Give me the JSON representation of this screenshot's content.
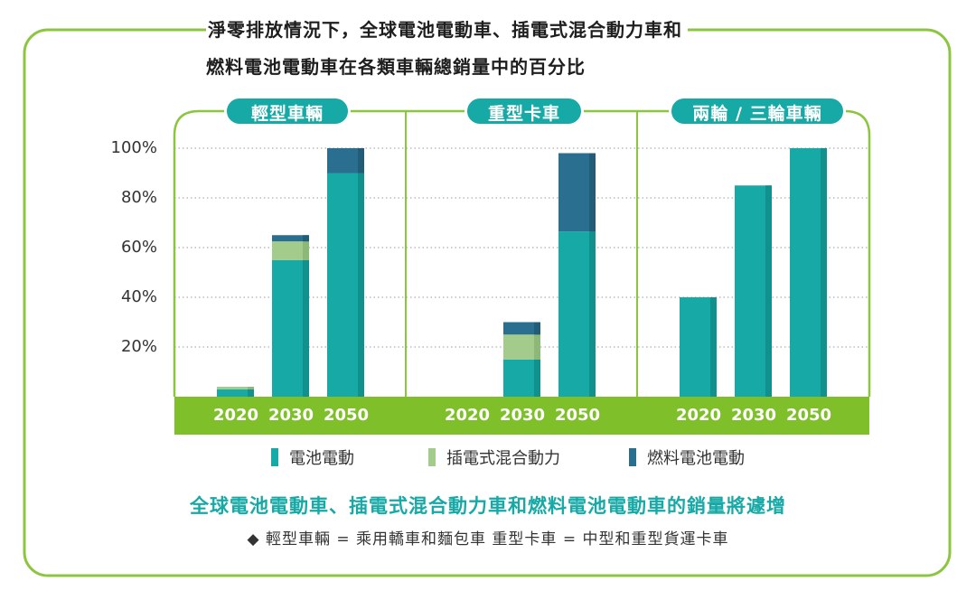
{
  "title": {
    "line1": "淨零排放情況下，全球電池電動車、插電式混合動力車和",
    "line2": "燃料電池電動車在各類車輛總銷量中的百分比"
  },
  "chart_data": {
    "type": "bar",
    "stacked": true,
    "ylim": [
      0,
      100
    ],
    "yticks": [
      "20%",
      "40%",
      "60%",
      "80%",
      "100%"
    ],
    "colors": {
      "bev": "#17a9a6",
      "bev_side": "#12908d",
      "phev": "#a3cc8c",
      "phev_side": "#8db877",
      "fcev": "#2a6f8f",
      "fcev_side": "#225c77",
      "frame": "#8cc63f",
      "axis_band": "#7fbf2a",
      "grid": "#9a9a9a"
    },
    "panels": [
      {
        "label": "輕型車輛",
        "categories": [
          "2020",
          "2030",
          "2050"
        ],
        "series": [
          {
            "name": "電池電動",
            "values": [
              3,
              55,
              90
            ]
          },
          {
            "name": "插電式混合動力",
            "values": [
              1,
              7.5,
              0
            ]
          },
          {
            "name": "燃料電池電動",
            "values": [
              0,
              2.5,
              10
            ]
          }
        ]
      },
      {
        "label": "重型卡車",
        "categories": [
          "2020",
          "2030",
          "2050"
        ],
        "series": [
          {
            "name": "電池電動",
            "values": [
              0,
              15,
              66.5
            ]
          },
          {
            "name": "插電式混合動力",
            "values": [
              0,
              10,
              0
            ]
          },
          {
            "name": "燃料電池電動",
            "values": [
              0,
              5,
              31.5
            ]
          }
        ]
      },
      {
        "label": "兩輪 / 三輪車輛",
        "categories": [
          "2020",
          "2030",
          "2050"
        ],
        "series": [
          {
            "name": "電池電動",
            "values": [
              40,
              85,
              100
            ]
          },
          {
            "name": "插電式混合動力",
            "values": [
              0,
              0,
              0
            ]
          },
          {
            "name": "燃料電池電動",
            "values": [
              0,
              0,
              0
            ]
          }
        ]
      }
    ]
  },
  "legend": [
    {
      "label": "電池電動",
      "color": "#17a9a6"
    },
    {
      "label": "插電式混合動力",
      "color": "#a3cc8c"
    },
    {
      "label": "燃料電池電動",
      "color": "#2a6f8f"
    }
  ],
  "subtitle": "全球電池電動車、插電式混合動力車和燃料電池電動車的銷量將遽增",
  "footnote": "◆ 輕型車輛 = 乘用轎車和麵包車   重型卡車 = 中型和重型貨運卡車"
}
